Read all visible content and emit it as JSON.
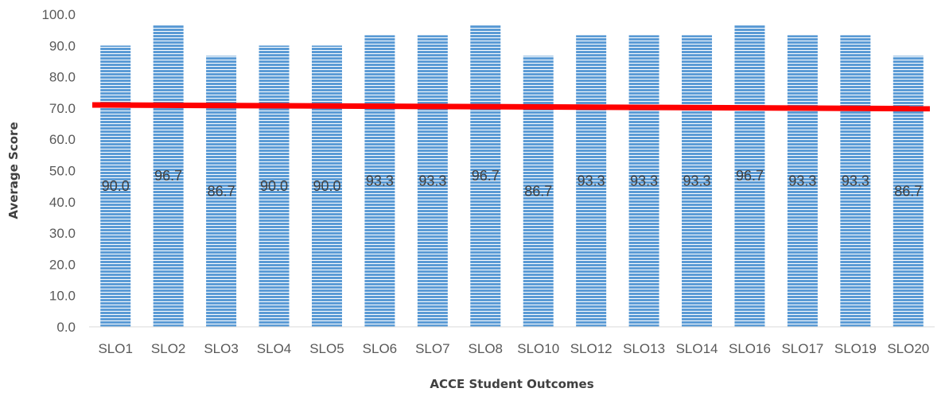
{
  "chart_data": {
    "type": "bar",
    "categories": [
      "SLO1",
      "SLO2",
      "SLO3",
      "SLO4",
      "SLO5",
      "SLO6",
      "SLO7",
      "SLO8",
      "SLO10",
      "SLO12",
      "SLO13",
      "SLO14",
      "SLO16",
      "SLO17",
      "SLO19",
      "SLO20"
    ],
    "values": [
      90.0,
      96.7,
      86.7,
      90.0,
      90.0,
      93.3,
      93.3,
      96.7,
      86.7,
      93.3,
      93.3,
      93.3,
      96.7,
      93.3,
      93.3,
      86.7
    ],
    "value_labels": [
      "90.0",
      "96.7",
      "86.7",
      "90.0",
      "90.0",
      "93.3",
      "93.3",
      "96.7",
      "86.7",
      "93.3",
      "93.3",
      "93.3",
      "96.7",
      "93.3",
      "93.3",
      "86.7"
    ],
    "title": "",
    "xlabel": "ACCE Student Outcomes",
    "ylabel": "Average Score",
    "ylim": [
      0,
      100
    ],
    "yticks": [
      "0.0",
      "10.0",
      "20.0",
      "30.0",
      "40.0",
      "50.0",
      "60.0",
      "70.0",
      "80.0",
      "90.0",
      "100.0"
    ],
    "grid": false,
    "legend": "none",
    "reference_line": {
      "start": 71.0,
      "end": 69.8
    },
    "colors": {
      "bar": "#5b9bd5",
      "bar_stripe": "#ffffff",
      "reference_line": "#ff0000",
      "axis": "#d9d9d9"
    }
  }
}
